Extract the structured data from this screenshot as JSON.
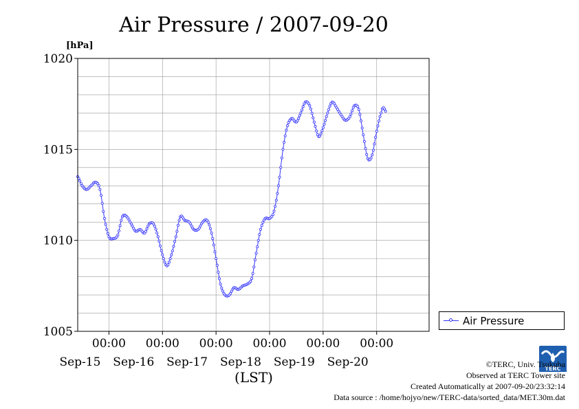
{
  "chart_data": {
    "type": "line",
    "title": "Air Pressure / 2007-09-20",
    "ylabel": "[hPa]",
    "xlabel": "(LST)",
    "ylim": [
      1005,
      1020
    ],
    "yticks": [
      1005,
      1010,
      1015,
      1020
    ],
    "xlim": [
      "2007-09-14T10:00",
      "2007-09-20T23:30"
    ],
    "xticks": [
      {
        "x": "2007-09-15T00:00",
        "time": "00:00",
        "day": "Sep-15"
      },
      {
        "x": "2007-09-16T00:00",
        "time": "00:00",
        "day": "Sep-16"
      },
      {
        "x": "2007-09-17T00:00",
        "time": "00:00",
        "day": "Sep-17"
      },
      {
        "x": "2007-09-18T00:00",
        "time": "00:00",
        "day": "Sep-18"
      },
      {
        "x": "2007-09-19T00:00",
        "time": "00:00",
        "day": "Sep-19"
      },
      {
        "x": "2007-09-20T00:00",
        "time": "00:00",
        "day": "Sep-20"
      }
    ],
    "grid": true,
    "legend_position": "right",
    "series": [
      {
        "name": "Air Pressure",
        "color": "#3333ff",
        "points": [
          [
            "2007-09-14T10:00",
            1013.5
          ],
          [
            "2007-09-14T12:00",
            1013.0
          ],
          [
            "2007-09-14T14:00",
            1012.8
          ],
          [
            "2007-09-14T16:00",
            1013.0
          ],
          [
            "2007-09-14T18:00",
            1013.2
          ],
          [
            "2007-09-14T20:00",
            1012.8
          ],
          [
            "2007-09-14T22:00",
            1011.2
          ],
          [
            "2007-09-15T00:00",
            1010.2
          ],
          [
            "2007-09-15T02:00",
            1010.1
          ],
          [
            "2007-09-15T04:00",
            1010.3
          ],
          [
            "2007-09-15T06:00",
            1011.3
          ],
          [
            "2007-09-15T08:00",
            1011.3
          ],
          [
            "2007-09-15T10:00",
            1010.9
          ],
          [
            "2007-09-15T12:00",
            1010.5
          ],
          [
            "2007-09-15T14:00",
            1010.6
          ],
          [
            "2007-09-15T16:00",
            1010.4
          ],
          [
            "2007-09-15T18:00",
            1010.9
          ],
          [
            "2007-09-15T20:00",
            1010.9
          ],
          [
            "2007-09-15T22:00",
            1010.2
          ],
          [
            "2007-09-16T00:00",
            1009.2
          ],
          [
            "2007-09-16T02:00",
            1008.6
          ],
          [
            "2007-09-16T04:00",
            1009.2
          ],
          [
            "2007-09-16T06:00",
            1010.2
          ],
          [
            "2007-09-16T08:00",
            1011.3
          ],
          [
            "2007-09-16T10:00",
            1011.1
          ],
          [
            "2007-09-16T12:00",
            1011.0
          ],
          [
            "2007-09-16T14:00",
            1010.6
          ],
          [
            "2007-09-16T16:00",
            1010.6
          ],
          [
            "2007-09-16T18:00",
            1011.0
          ],
          [
            "2007-09-16T20:00",
            1011.1
          ],
          [
            "2007-09-16T22:00",
            1010.4
          ],
          [
            "2007-09-17T00:00",
            1009.0
          ],
          [
            "2007-09-17T02:00",
            1007.6
          ],
          [
            "2007-09-17T04:00",
            1007.0
          ],
          [
            "2007-09-17T06:00",
            1007.0
          ],
          [
            "2007-09-17T08:00",
            1007.4
          ],
          [
            "2007-09-17T10:00",
            1007.3
          ],
          [
            "2007-09-17T12:00",
            1007.5
          ],
          [
            "2007-09-17T14:00",
            1007.6
          ],
          [
            "2007-09-17T16:00",
            1007.9
          ],
          [
            "2007-09-17T18:00",
            1009.3
          ],
          [
            "2007-09-17T20:00",
            1010.6
          ],
          [
            "2007-09-17T22:00",
            1011.2
          ],
          [
            "2007-09-18T00:00",
            1011.2
          ],
          [
            "2007-09-18T02:00",
            1011.6
          ],
          [
            "2007-09-18T04:00",
            1013.0
          ],
          [
            "2007-09-18T06:00",
            1015.0
          ],
          [
            "2007-09-18T08:00",
            1016.3
          ],
          [
            "2007-09-18T10:00",
            1016.7
          ],
          [
            "2007-09-18T12:00",
            1016.5
          ],
          [
            "2007-09-18T14:00",
            1017.0
          ],
          [
            "2007-09-18T16:00",
            1017.6
          ],
          [
            "2007-09-18T18:00",
            1017.4
          ],
          [
            "2007-09-18T20:00",
            1016.5
          ],
          [
            "2007-09-18T22:00",
            1015.7
          ],
          [
            "2007-09-19T00:00",
            1016.2
          ],
          [
            "2007-09-19T02:00",
            1017.0
          ],
          [
            "2007-09-19T04:00",
            1017.6
          ],
          [
            "2007-09-19T06:00",
            1017.3
          ],
          [
            "2007-09-19T08:00",
            1016.9
          ],
          [
            "2007-09-19T10:00",
            1016.6
          ],
          [
            "2007-09-19T12:00",
            1016.8
          ],
          [
            "2007-09-19T14:00",
            1017.4
          ],
          [
            "2007-09-19T16:00",
            1017.2
          ],
          [
            "2007-09-19T18:00",
            1015.8
          ],
          [
            "2007-09-19T20:00",
            1014.5
          ],
          [
            "2007-09-19T22:00",
            1014.7
          ],
          [
            "2007-09-20T00:00",
            1016.0
          ],
          [
            "2007-09-20T02:00",
            1017.0
          ],
          [
            "2007-09-20T03:00",
            1017.3
          ],
          [
            "2007-09-20T04:00",
            1017.1
          ]
        ]
      }
    ]
  },
  "legend": {
    "label": "Air Pressure"
  },
  "logo": {
    "text": "TERC"
  },
  "credits": {
    "line1": "©TERC, Univ. Tsukuba",
    "line2": "Observed at TERC Tower site",
    "line3": "Created Automatically at 2007-09-20/23:32:14",
    "line4": "Data source : /home/hojyo/new/TERC-data/sorted_data/MET.30m.dat"
  }
}
